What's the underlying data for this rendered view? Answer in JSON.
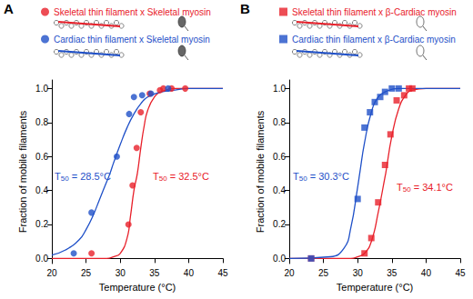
{
  "chart_data": [
    {
      "type": "scatter",
      "title": "A",
      "xlabel": "Temperature (°C)",
      "ylabel": "Fraction of mobile filaments",
      "xlim": [
        20,
        45
      ],
      "xticks": [
        20,
        25,
        30,
        35,
        40,
        45
      ],
      "ylim": [
        -0.03,
        1.05
      ],
      "yticks": [
        {
          "value": 0,
          "label": "0.0"
        },
        {
          "value": 0.2,
          "label": "0.2"
        },
        {
          "value": 0.4,
          "label": "0.4"
        },
        {
          "value": 0.6,
          "label": "0.6"
        },
        {
          "value": 0.8,
          "label": "0.8"
        },
        {
          "value": 1.0,
          "label": "1.0"
        }
      ],
      "grid": false,
      "legend": "top",
      "series": [
        {
          "name": "Skeletal thin filament x Skeletal myosin",
          "color": "#e8202a",
          "marker": "circle",
          "x": [
            25.8,
            31.2,
            31.8,
            32.4,
            33.0,
            34.3,
            35.8,
            36.3,
            37.5,
            39.5
          ],
          "values": [
            0.03,
            0.2,
            0.43,
            0.65,
            0.86,
            0.97,
            0.99,
            1.0,
            1.0,
            1.0
          ],
          "fit": {
            "x": [
              20,
              28,
              29,
              30,
              31,
              31.5,
              32,
              32.5,
              33,
              33.5,
              34,
              35,
              36,
              38,
              45
            ],
            "values": [
              0,
              0,
              0.01,
              0.03,
              0.12,
              0.25,
              0.4,
              0.5,
              0.65,
              0.78,
              0.87,
              0.95,
              0.98,
              1.0,
              1.0
            ]
          }
        },
        {
          "name": "Cardiac thin filament x Skeletal myosin",
          "color": "#1f50c8",
          "marker": "circle",
          "x": [
            23.2,
            25.8,
            29.5,
            31.3,
            32.0,
            33.2,
            34.5,
            37.0
          ],
          "values": [
            0.03,
            0.27,
            0.6,
            0.85,
            0.95,
            0.96,
            0.97,
            1.0
          ],
          "fit": {
            "x": [
              20,
              22,
              24,
              25,
              26,
              27,
              28,
              28.5,
              29,
              30,
              31,
              32,
              33,
              34,
              36,
              38,
              40,
              45
            ],
            "values": [
              0.02,
              0.05,
              0.11,
              0.17,
              0.25,
              0.35,
              0.45,
              0.5,
              0.56,
              0.67,
              0.77,
              0.85,
              0.91,
              0.95,
              0.98,
              0.99,
              1.0,
              1.0
            ]
          }
        }
      ],
      "annotations": [
        {
          "text": "T",
          "subscript": "50",
          "suffix": " = 28.5°C",
          "color": "#1f50c8"
        },
        {
          "text": "T",
          "subscript": "50",
          "suffix": " = 32.5°C",
          "color": "#e8202a"
        }
      ]
    },
    {
      "type": "scatter",
      "title": "B",
      "xlabel": "Temperature (°C)",
      "ylabel": "Fraction of mobile filaments",
      "xlim": [
        20,
        45
      ],
      "xticks": [
        20,
        25,
        30,
        35,
        40,
        45
      ],
      "ylim": [
        -0.03,
        1.05
      ],
      "yticks": [
        {
          "value": 0,
          "label": "0.0"
        },
        {
          "value": 0.2,
          "label": "0.2"
        },
        {
          "value": 0.4,
          "label": "0.4"
        },
        {
          "value": 0.6,
          "label": "0.6"
        },
        {
          "value": 0.8,
          "label": "0.8"
        },
        {
          "value": 1.0,
          "label": "1.0"
        }
      ],
      "grid": false,
      "legend": "top",
      "series": [
        {
          "name": "Skeletal thin filament x β-Cardiac myosin",
          "color": "#e8202a",
          "marker": "rect",
          "x": [
            23.2,
            31.0,
            32.0,
            33.0,
            34.0,
            34.8,
            35.7,
            36.8,
            37.5,
            38.0
          ],
          "values": [
            0.0,
            0.03,
            0.12,
            0.33,
            0.55,
            0.73,
            0.93,
            0.96,
            1.0,
            1.0
          ],
          "fit": {
            "x": [
              20,
              29,
              30,
              31,
              32,
              33,
              34,
              34.1,
              35,
              36,
              37,
              38,
              40,
              45
            ],
            "values": [
              0,
              0,
              0.01,
              0.03,
              0.1,
              0.27,
              0.48,
              0.5,
              0.72,
              0.88,
              0.96,
              0.99,
              1.0,
              1.0
            ]
          }
        },
        {
          "name": "Cardiac thin filament x β-Cardiac myosin",
          "color": "#1f50c8",
          "marker": "rect",
          "x": [
            23.2,
            30.0,
            31.0,
            31.8,
            32.5,
            33.3,
            34.0,
            35.0,
            36.0
          ],
          "values": [
            0.0,
            0.35,
            0.77,
            0.86,
            0.92,
            0.95,
            0.98,
            1.0,
            1.0
          ],
          "fit": {
            "x": [
              20,
              26,
              28,
              29,
              30,
              30.3,
              31,
              32,
              33,
              34,
              36,
              45
            ],
            "values": [
              0,
              0.01,
              0.06,
              0.18,
              0.42,
              0.5,
              0.68,
              0.86,
              0.95,
              0.98,
              1.0,
              1.0
            ]
          }
        }
      ],
      "annotations": [
        {
          "text": "T",
          "subscript": "50",
          "suffix": " = 30.3°C",
          "color": "#1f50c8"
        },
        {
          "text": "T",
          "subscript": "50",
          "suffix": " = 34.1°C",
          "color": "#e8202a"
        }
      ]
    }
  ]
}
